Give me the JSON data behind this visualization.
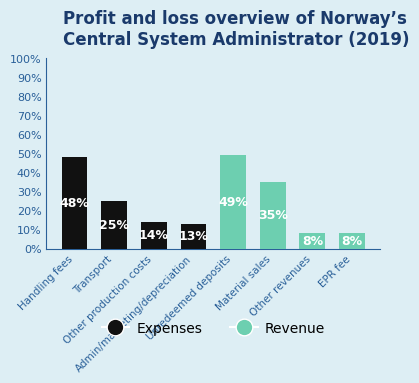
{
  "title": "Profit and loss overview of Norway’s\nCentral System Administrator (2019)",
  "categories": [
    "Handling fees",
    "Transport",
    "Other production costs",
    "Admin/marketing/depreciation",
    "Unredeemed deposits",
    "Material sales",
    "Other revenues",
    "EPR fee"
  ],
  "values": [
    48,
    25,
    14,
    13,
    49,
    35,
    8,
    8
  ],
  "bar_colors": [
    "#111111",
    "#111111",
    "#111111",
    "#111111",
    "#6dcfb0",
    "#6dcfb0",
    "#6dcfb0",
    "#6dcfb0"
  ],
  "labels": [
    "48%",
    "25%",
    "14%",
    "13%",
    "49%",
    "35%",
    "8%",
    "8%"
  ],
  "ylim": [
    0,
    100
  ],
  "yticks": [
    0,
    10,
    20,
    30,
    40,
    50,
    60,
    70,
    80,
    90,
    100
  ],
  "ytick_labels": [
    "0%",
    "10%",
    "20%",
    "30%",
    "40%",
    "50%",
    "60%",
    "70%",
    "80%",
    "90%",
    "100%"
  ],
  "background_color": "#ddeef4",
  "bar_width": 0.65,
  "title_color": "#1a3a6b",
  "axis_color": "#2a6099",
  "tick_color": "#2a6099",
  "label_text_color": "#ffffff",
  "legend_expense_color": "#111111",
  "legend_revenue_color": "#6dcfb0",
  "legend_expense_label": "Expenses",
  "legend_revenue_label": "Revenue"
}
